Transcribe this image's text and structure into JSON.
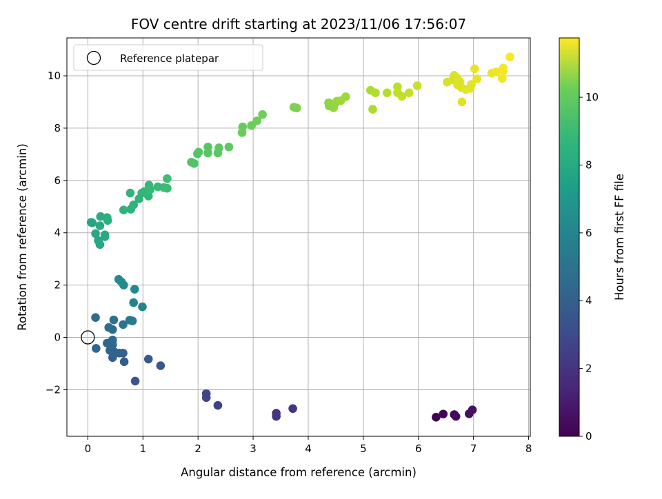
{
  "chart_data": {
    "type": "scatter",
    "title": "FOV centre drift starting at 2023/11/06 17:56:07",
    "xlabel": "Angular distance from reference (arcmin)",
    "ylabel": "Rotation from reference (arcmin)",
    "xlim": [
      -0.38,
      8.03
    ],
    "ylim": [
      -3.78,
      11.45
    ],
    "xticks": [
      0,
      1,
      2,
      3,
      4,
      5,
      6,
      7,
      8
    ],
    "yticks": [
      -2,
      0,
      2,
      4,
      6,
      8,
      10
    ],
    "grid": true,
    "legend": {
      "position": "top-left",
      "entries": [
        "Reference platepar"
      ]
    },
    "reference_point": {
      "x": 0,
      "y": 0
    },
    "colorbar": {
      "label": "Hours from first FF file",
      "range": [
        0,
        11.75
      ],
      "ticks": [
        0,
        2,
        4,
        6,
        8,
        10
      ],
      "colormap": "viridis"
    },
    "points": [
      {
        "x": 6.32,
        "y": -3.05,
        "c": 0.0
      },
      {
        "x": 6.45,
        "y": -2.93,
        "c": 0.15
      },
      {
        "x": 6.65,
        "y": -2.95,
        "c": 0.25
      },
      {
        "x": 6.68,
        "y": -3.02,
        "c": 0.3
      },
      {
        "x": 6.92,
        "y": -2.92,
        "c": 0.45
      },
      {
        "x": 6.98,
        "y": -2.77,
        "c": 0.55
      },
      {
        "x": 3.42,
        "y": -2.9,
        "c": 1.7
      },
      {
        "x": 3.42,
        "y": -3.02,
        "c": 1.75
      },
      {
        "x": 3.72,
        "y": -2.72,
        "c": 1.9
      },
      {
        "x": 2.15,
        "y": -2.15,
        "c": 2.4
      },
      {
        "x": 2.15,
        "y": -2.3,
        "c": 2.45
      },
      {
        "x": 2.36,
        "y": -2.6,
        "c": 2.3
      },
      {
        "x": 0.86,
        "y": -1.67,
        "c": 3.1
      },
      {
        "x": 1.1,
        "y": -0.83,
        "c": 3.3
      },
      {
        "x": 1.32,
        "y": -1.08,
        "c": 3.25
      },
      {
        "x": 0.66,
        "y": -0.93,
        "c": 3.5
      },
      {
        "x": 0.45,
        "y": -0.77,
        "c": 3.55
      },
      {
        "x": 0.57,
        "y": -0.6,
        "c": 3.6
      },
      {
        "x": 0.64,
        "y": -0.6,
        "c": 3.65
      },
      {
        "x": 0.4,
        "y": -0.5,
        "c": 3.7
      },
      {
        "x": 0.48,
        "y": -0.55,
        "c": 3.7
      },
      {
        "x": 0.15,
        "y": -0.42,
        "c": 3.8
      },
      {
        "x": 0.35,
        "y": -0.22,
        "c": 3.85
      },
      {
        "x": 0.45,
        "y": -0.28,
        "c": 3.9
      },
      {
        "x": 0.45,
        "y": -0.1,
        "c": 3.95
      },
      {
        "x": 0.45,
        "y": 0.3,
        "c": 4.0
      },
      {
        "x": 0.38,
        "y": 0.38,
        "c": 4.05
      },
      {
        "x": 0.14,
        "y": 0.76,
        "c": 4.1
      },
      {
        "x": 0.47,
        "y": 0.67,
        "c": 4.3
      },
      {
        "x": 0.64,
        "y": 0.49,
        "c": 4.5
      },
      {
        "x": 0.76,
        "y": 0.66,
        "c": 4.7
      },
      {
        "x": 0.81,
        "y": 0.63,
        "c": 4.8
      },
      {
        "x": 0.83,
        "y": 1.33,
        "c": 5.2
      },
      {
        "x": 0.99,
        "y": 1.17,
        "c": 5.3
      },
      {
        "x": 0.85,
        "y": 1.84,
        "c": 5.5
      },
      {
        "x": 0.56,
        "y": 2.22,
        "c": 5.55
      },
      {
        "x": 0.61,
        "y": 2.12,
        "c": 5.6
      },
      {
        "x": 0.65,
        "y": 2.0,
        "c": 5.65
      },
      {
        "x": 0.06,
        "y": 4.4,
        "c": 6.9
      },
      {
        "x": 0.08,
        "y": 4.38,
        "c": 6.9
      },
      {
        "x": 0.14,
        "y": 3.97,
        "c": 7.0
      },
      {
        "x": 0.19,
        "y": 3.7,
        "c": 6.95
      },
      {
        "x": 0.22,
        "y": 3.55,
        "c": 7.0
      },
      {
        "x": 0.31,
        "y": 3.85,
        "c": 7.05
      },
      {
        "x": 0.31,
        "y": 3.92,
        "c": 7.1
      },
      {
        "x": 0.22,
        "y": 4.27,
        "c": 7.15
      },
      {
        "x": 0.23,
        "y": 4.62,
        "c": 7.25
      },
      {
        "x": 0.35,
        "y": 4.58,
        "c": 7.3
      },
      {
        "x": 0.36,
        "y": 4.47,
        "c": 7.35
      },
      {
        "x": 0.65,
        "y": 4.87,
        "c": 7.5
      },
      {
        "x": 0.78,
        "y": 4.9,
        "c": 7.55
      },
      {
        "x": 0.83,
        "y": 5.07,
        "c": 7.6
      },
      {
        "x": 0.93,
        "y": 5.3,
        "c": 7.65
      },
      {
        "x": 0.98,
        "y": 5.52,
        "c": 7.7
      },
      {
        "x": 1.03,
        "y": 5.58,
        "c": 7.75
      },
      {
        "x": 1.1,
        "y": 5.4,
        "c": 7.8
      },
      {
        "x": 1.11,
        "y": 5.82,
        "c": 7.85
      },
      {
        "x": 1.13,
        "y": 5.65,
        "c": 7.9
      },
      {
        "x": 1.27,
        "y": 5.76,
        "c": 7.95
      },
      {
        "x": 1.38,
        "y": 5.73,
        "c": 8.0
      },
      {
        "x": 1.44,
        "y": 5.7,
        "c": 8.05
      },
      {
        "x": 1.44,
        "y": 6.07,
        "c": 8.1
      },
      {
        "x": 0.77,
        "y": 5.52,
        "c": 7.6
      },
      {
        "x": 1.88,
        "y": 6.7,
        "c": 8.4
      },
      {
        "x": 1.93,
        "y": 6.65,
        "c": 8.45
      },
      {
        "x": 1.99,
        "y": 7.02,
        "c": 8.5
      },
      {
        "x": 2.01,
        "y": 7.08,
        "c": 8.55
      },
      {
        "x": 2.18,
        "y": 7.28,
        "c": 8.6
      },
      {
        "x": 2.18,
        "y": 7.05,
        "c": 8.65
      },
      {
        "x": 2.36,
        "y": 7.05,
        "c": 8.7
      },
      {
        "x": 2.38,
        "y": 7.25,
        "c": 8.75
      },
      {
        "x": 2.56,
        "y": 7.28,
        "c": 8.8
      },
      {
        "x": 2.81,
        "y": 8.05,
        "c": 8.95
      },
      {
        "x": 2.8,
        "y": 7.83,
        "c": 9.0
      },
      {
        "x": 2.97,
        "y": 8.1,
        "c": 9.05
      },
      {
        "x": 3.07,
        "y": 8.28,
        "c": 9.1
      },
      {
        "x": 3.17,
        "y": 8.52,
        "c": 9.15
      },
      {
        "x": 3.74,
        "y": 8.8,
        "c": 9.4
      },
      {
        "x": 3.79,
        "y": 8.77,
        "c": 9.45
      },
      {
        "x": 4.37,
        "y": 8.97,
        "c": 9.7
      },
      {
        "x": 4.38,
        "y": 8.85,
        "c": 9.75
      },
      {
        "x": 4.46,
        "y": 8.78,
        "c": 9.8
      },
      {
        "x": 4.49,
        "y": 8.96,
        "c": 9.85
      },
      {
        "x": 4.52,
        "y": 9.03,
        "c": 9.9
      },
      {
        "x": 4.59,
        "y": 9.05,
        "c": 9.95
      },
      {
        "x": 4.68,
        "y": 9.2,
        "c": 10.0
      },
      {
        "x": 5.13,
        "y": 9.45,
        "c": 10.3
      },
      {
        "x": 5.22,
        "y": 9.35,
        "c": 10.35
      },
      {
        "x": 5.17,
        "y": 8.72,
        "c": 10.25
      },
      {
        "x": 5.43,
        "y": 9.35,
        "c": 10.45
      },
      {
        "x": 5.62,
        "y": 9.58,
        "c": 10.55
      },
      {
        "x": 5.62,
        "y": 9.35,
        "c": 10.6
      },
      {
        "x": 5.7,
        "y": 9.22,
        "c": 10.65
      },
      {
        "x": 5.83,
        "y": 9.35,
        "c": 10.7
      },
      {
        "x": 5.98,
        "y": 9.62,
        "c": 10.8
      },
      {
        "x": 6.52,
        "y": 9.76,
        "c": 11.0
      },
      {
        "x": 6.62,
        "y": 9.85,
        "c": 11.05
      },
      {
        "x": 6.65,
        "y": 10.02,
        "c": 11.1
      },
      {
        "x": 6.7,
        "y": 9.92,
        "c": 11.1
      },
      {
        "x": 6.71,
        "y": 9.65,
        "c": 11.15
      },
      {
        "x": 6.75,
        "y": 9.78,
        "c": 11.15
      },
      {
        "x": 6.78,
        "y": 9.55,
        "c": 11.2
      },
      {
        "x": 6.79,
        "y": 9.0,
        "c": 11.2
      },
      {
        "x": 6.86,
        "y": 9.48,
        "c": 11.25
      },
      {
        "x": 6.94,
        "y": 9.52,
        "c": 11.3
      },
      {
        "x": 6.96,
        "y": 9.67,
        "c": 11.3
      },
      {
        "x": 7.02,
        "y": 10.27,
        "c": 11.35
      },
      {
        "x": 7.06,
        "y": 9.88,
        "c": 11.35
      },
      {
        "x": 7.33,
        "y": 10.1,
        "c": 11.45
      },
      {
        "x": 7.41,
        "y": 10.15,
        "c": 11.5
      },
      {
        "x": 7.52,
        "y": 9.9,
        "c": 11.55
      },
      {
        "x": 7.54,
        "y": 10.3,
        "c": 11.6
      },
      {
        "x": 7.54,
        "y": 10.18,
        "c": 11.6
      },
      {
        "x": 7.66,
        "y": 10.72,
        "c": 11.7
      }
    ]
  }
}
